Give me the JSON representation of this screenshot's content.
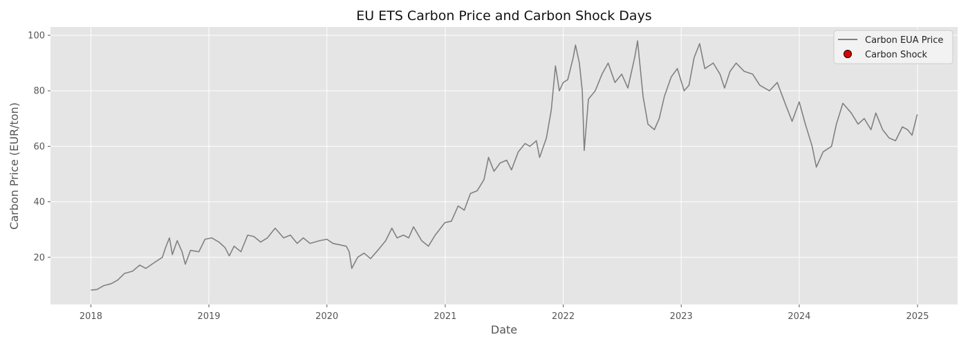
{
  "chart_data": {
    "type": "line",
    "title": "EU ETS Carbon Price and Carbon Shock Days",
    "xlabel": "Date",
    "ylabel": "Carbon Price (EUR/ton)",
    "xlim": [
      "2017-08-29",
      "2025-05-05"
    ],
    "ylim": [
      3,
      103
    ],
    "x_ticks": [
      "2018",
      "2019",
      "2020",
      "2021",
      "2022",
      "2023",
      "2024",
      "2025"
    ],
    "y_ticks": [
      20,
      40,
      60,
      80,
      100
    ],
    "grid": true,
    "legend_position": "top-right",
    "colors": {
      "price_line": "#808080",
      "shock_marker": "#e00000",
      "plot_background": "#e5e5e5",
      "grid": "#ffffff"
    },
    "series": [
      {
        "name": "Carbon EUA Price",
        "kind": "line",
        "points": [
          [
            "2018-01-01",
            8.2
          ],
          [
            "2018-01-20",
            8.4
          ],
          [
            "2018-02-10",
            9.8
          ],
          [
            "2018-03-05",
            10.5
          ],
          [
            "2018-03-25",
            11.8
          ],
          [
            "2018-04-15",
            14.2
          ],
          [
            "2018-05-10",
            15.0
          ],
          [
            "2018-06-01",
            17.2
          ],
          [
            "2018-06-20",
            16.0
          ],
          [
            "2018-07-15",
            18.0
          ],
          [
            "2018-08-10",
            20.0
          ],
          [
            "2018-08-20",
            23.5
          ],
          [
            "2018-09-01",
            27.0
          ],
          [
            "2018-09-10",
            21.0
          ],
          [
            "2018-09-25",
            26.0
          ],
          [
            "2018-10-10",
            22.0
          ],
          [
            "2018-10-20",
            17.5
          ],
          [
            "2018-11-05",
            22.5
          ],
          [
            "2018-12-01",
            22.0
          ],
          [
            "2018-12-20",
            26.5
          ],
          [
            "2019-01-10",
            27.0
          ],
          [
            "2019-02-01",
            25.5
          ],
          [
            "2019-02-20",
            23.5
          ],
          [
            "2019-03-05",
            20.5
          ],
          [
            "2019-03-20",
            24.0
          ],
          [
            "2019-04-10",
            22.0
          ],
          [
            "2019-05-01",
            28.0
          ],
          [
            "2019-05-20",
            27.5
          ],
          [
            "2019-06-10",
            25.5
          ],
          [
            "2019-07-01",
            27.0
          ],
          [
            "2019-07-25",
            30.5
          ],
          [
            "2019-08-20",
            27.0
          ],
          [
            "2019-09-10",
            28.0
          ],
          [
            "2019-10-01",
            25.0
          ],
          [
            "2019-10-20",
            27.0
          ],
          [
            "2019-11-10",
            25.0
          ],
          [
            "2019-12-10",
            26.0
          ],
          [
            "2020-01-01",
            26.5
          ],
          [
            "2020-01-20",
            25.0
          ],
          [
            "2020-02-10",
            24.5
          ],
          [
            "2020-03-01",
            24.0
          ],
          [
            "2020-03-10",
            22.0
          ],
          [
            "2020-03-18",
            16.0
          ],
          [
            "2020-04-05",
            20.0
          ],
          [
            "2020-04-25",
            21.5
          ],
          [
            "2020-05-15",
            19.5
          ],
          [
            "2020-06-10",
            23.0
          ],
          [
            "2020-07-01",
            26.0
          ],
          [
            "2020-07-20",
            30.5
          ],
          [
            "2020-08-05",
            27.0
          ],
          [
            "2020-08-25",
            28.0
          ],
          [
            "2020-09-10",
            27.0
          ],
          [
            "2020-09-25",
            31.0
          ],
          [
            "2020-10-20",
            26.0
          ],
          [
            "2020-11-10",
            24.0
          ],
          [
            "2020-12-01",
            28.0
          ],
          [
            "2020-12-31",
            32.5
          ],
          [
            "2021-01-20",
            33.0
          ],
          [
            "2021-02-10",
            38.5
          ],
          [
            "2021-03-01",
            37.0
          ],
          [
            "2021-03-20",
            43.0
          ],
          [
            "2021-04-10",
            44.0
          ],
          [
            "2021-05-01",
            48.0
          ],
          [
            "2021-05-15",
            56.0
          ],
          [
            "2021-06-01",
            51.0
          ],
          [
            "2021-06-20",
            54.0
          ],
          [
            "2021-07-10",
            55.0
          ],
          [
            "2021-07-25",
            51.5
          ],
          [
            "2021-08-15",
            58.0
          ],
          [
            "2021-09-05",
            61.0
          ],
          [
            "2021-09-20",
            60.0
          ],
          [
            "2021-10-10",
            62.0
          ],
          [
            "2021-10-20",
            56.0
          ],
          [
            "2021-11-10",
            63.0
          ],
          [
            "2021-11-25",
            73.0
          ],
          [
            "2021-12-08",
            89.0
          ],
          [
            "2021-12-20",
            80.0
          ],
          [
            "2022-01-01",
            83.0
          ],
          [
            "2022-01-15",
            84.0
          ],
          [
            "2022-02-01",
            92.0
          ],
          [
            "2022-02-08",
            96.5
          ],
          [
            "2022-02-20",
            90.0
          ],
          [
            "2022-03-01",
            80.0
          ],
          [
            "2022-03-07",
            58.5
          ],
          [
            "2022-03-20",
            77.0
          ],
          [
            "2022-04-10",
            80.0
          ],
          [
            "2022-05-01",
            86.0
          ],
          [
            "2022-05-20",
            90.0
          ],
          [
            "2022-06-10",
            83.0
          ],
          [
            "2022-07-01",
            86.0
          ],
          [
            "2022-07-20",
            81.0
          ],
          [
            "2022-08-10",
            92.0
          ],
          [
            "2022-08-19",
            98.0
          ],
          [
            "2022-09-05",
            78.0
          ],
          [
            "2022-09-20",
            68.0
          ],
          [
            "2022-10-10",
            66.0
          ],
          [
            "2022-10-25",
            70.0
          ],
          [
            "2022-11-10",
            78.0
          ],
          [
            "2022-12-01",
            85.0
          ],
          [
            "2022-12-20",
            88.0
          ],
          [
            "2023-01-10",
            80.0
          ],
          [
            "2023-01-25",
            82.0
          ],
          [
            "2023-02-10",
            92.0
          ],
          [
            "2023-02-27",
            97.0
          ],
          [
            "2023-03-15",
            88.0
          ],
          [
            "2023-04-10",
            90.0
          ],
          [
            "2023-05-01",
            86.0
          ],
          [
            "2023-05-15",
            81.0
          ],
          [
            "2023-06-01",
            87.0
          ],
          [
            "2023-06-20",
            90.0
          ],
          [
            "2023-07-15",
            87.0
          ],
          [
            "2023-08-10",
            86.0
          ],
          [
            "2023-09-01",
            82.0
          ],
          [
            "2023-10-01",
            80.0
          ],
          [
            "2023-10-25",
            83.0
          ],
          [
            "2023-11-20",
            75.0
          ],
          [
            "2023-12-10",
            69.0
          ],
          [
            "2024-01-01",
            76.0
          ],
          [
            "2024-01-20",
            68.0
          ],
          [
            "2024-02-10",
            60.0
          ],
          [
            "2024-02-23",
            52.5
          ],
          [
            "2024-03-15",
            58.0
          ],
          [
            "2024-04-10",
            60.0
          ],
          [
            "2024-04-25",
            68.0
          ],
          [
            "2024-05-15",
            75.5
          ],
          [
            "2024-06-10",
            72.0
          ],
          [
            "2024-07-01",
            68.0
          ],
          [
            "2024-07-20",
            70.0
          ],
          [
            "2024-08-10",
            66.0
          ],
          [
            "2024-08-25",
            72.0
          ],
          [
            "2024-09-15",
            66.0
          ],
          [
            "2024-10-05",
            63.0
          ],
          [
            "2024-10-25",
            62.0
          ],
          [
            "2024-11-15",
            67.0
          ],
          [
            "2024-12-01",
            66.0
          ],
          [
            "2024-12-15",
            64.0
          ],
          [
            "2024-12-31",
            71.5
          ]
        ]
      },
      {
        "name": "Carbon Shock",
        "kind": "scatter",
        "points": []
      }
    ]
  }
}
